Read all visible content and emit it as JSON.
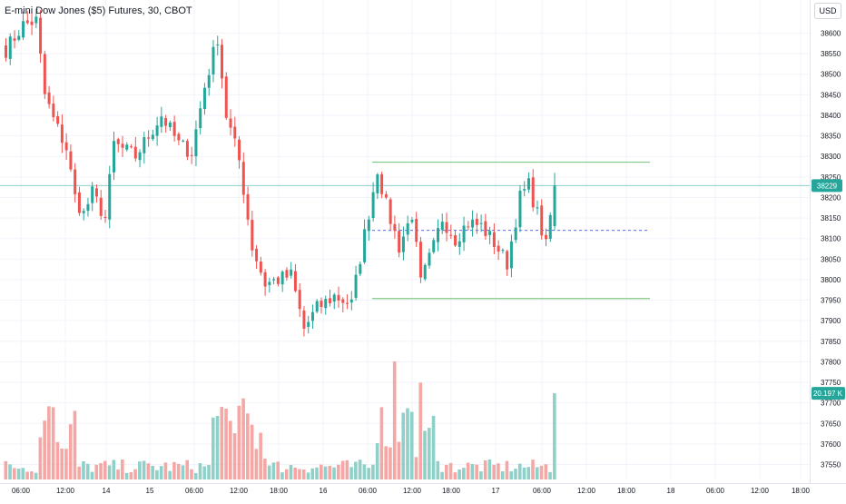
{
  "header": {
    "symbol_title": "E-mini Dow Jones ($5) Futures, 30, CBOT",
    "currency_label": "USD"
  },
  "colors": {
    "up": "#26a69a",
    "down": "#ef5350",
    "up_volume": "#8fd0c8",
    "down_volume": "#f4a7a4",
    "level": "#81c784",
    "midline": "#5b6cd9",
    "grid": "#f0f3fa",
    "axis_text": "#131722"
  },
  "chart_data": {
    "type": "candlestick",
    "x_tick_labels": [
      "06:00",
      "12:00",
      "14",
      "15",
      "06:00",
      "12:00",
      "18:00",
      "16",
      "06:00",
      "12:00",
      "18:00",
      "17",
      "06:00",
      "12:00",
      "18:00",
      "18",
      "06:00",
      "12:00",
      "18:00"
    ],
    "y_tick_values": [
      38600,
      38550,
      38500,
      38450,
      38400,
      38350,
      38300,
      38250,
      38200,
      38150,
      38100,
      38050,
      38000,
      37950,
      37900,
      37850,
      37800,
      37750,
      37700,
      37650,
      37600,
      37550
    ],
    "ylim": [
      37525,
      38640
    ],
    "last_price": {
      "value": 38229,
      "label": "38229"
    },
    "volume_last": {
      "label": "20.197 K"
    },
    "range_levels": {
      "resistance": 38286,
      "support": 37954,
      "midline": 38120
    },
    "volume_max": 20197,
    "candles_count": 130,
    "key_points": [
      {
        "i": 0,
        "c": 38560
      },
      {
        "i": 4,
        "c": 38620
      },
      {
        "i": 7,
        "c": 38630
      },
      {
        "i": 9,
        "c": 38450
      },
      {
        "i": 11,
        "c": 38390
      },
      {
        "i": 14,
        "c": 38320
      },
      {
        "i": 16,
        "c": 38200
      },
      {
        "i": 18,
        "c": 38160
      },
      {
        "i": 20,
        "c": 38210
      },
      {
        "i": 23,
        "c": 38150
      },
      {
        "i": 25,
        "c": 38330
      },
      {
        "i": 30,
        "c": 38300
      },
      {
        "i": 36,
        "c": 38400
      },
      {
        "i": 40,
        "c": 38330
      },
      {
        "i": 43,
        "c": 38310
      },
      {
        "i": 46,
        "c": 38470
      },
      {
        "i": 49,
        "c": 38590
      },
      {
        "i": 51,
        "c": 38400
      },
      {
        "i": 54,
        "c": 38290
      },
      {
        "i": 57,
        "c": 38080
      },
      {
        "i": 60,
        "c": 37990
      },
      {
        "i": 63,
        "c": 38000
      },
      {
        "i": 66,
        "c": 38010
      },
      {
        "i": 69,
        "c": 37880
      },
      {
        "i": 72,
        "c": 37930
      },
      {
        "i": 76,
        "c": 37960
      },
      {
        "i": 80,
        "c": 37940
      },
      {
        "i": 83,
        "c": 38110
      },
      {
        "i": 86,
        "c": 38270
      },
      {
        "i": 88,
        "c": 38180
      },
      {
        "i": 91,
        "c": 38080
      },
      {
        "i": 94,
        "c": 38160
      },
      {
        "i": 96,
        "c": 37990
      },
      {
        "i": 99,
        "c": 38080
      },
      {
        "i": 101,
        "c": 38150
      },
      {
        "i": 104,
        "c": 38100
      },
      {
        "i": 107,
        "c": 38140
      },
      {
        "i": 110,
        "c": 38130
      },
      {
        "i": 113,
        "c": 38090
      },
      {
        "i": 116,
        "c": 38040
      },
      {
        "i": 119,
        "c": 38200
      },
      {
        "i": 121,
        "c": 38230
      },
      {
        "i": 123,
        "c": 38160
      },
      {
        "i": 125,
        "c": 38080
      },
      {
        "i": 127,
        "c": 38229
      }
    ]
  }
}
